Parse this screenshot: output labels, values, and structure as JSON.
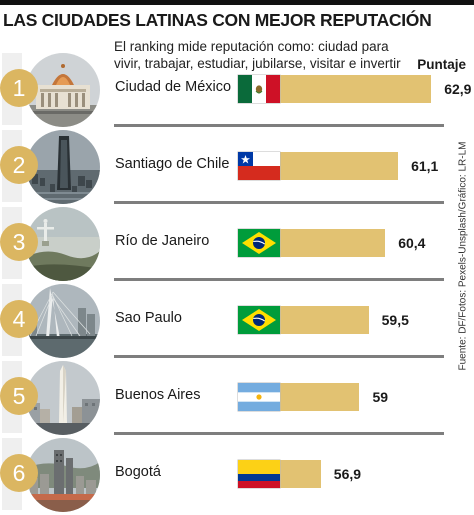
{
  "title": "LAS CIUDADES LATINAS CON MEJOR REPUTACIÓN",
  "subtitle": "El ranking mide reputación como: ciudad para vivir, trabajar, estudiar, jubilarse, visitar e invertir",
  "value_header": "Puntaje",
  "source": "Fuente: DF/Fotos: Pexels-Unsplash/Gráfico: LR-LM",
  "colors": {
    "bar": "#e2c272",
    "rank_badge": "#dbb661",
    "divider": "#7e7e7e"
  },
  "chart_data": {
    "type": "bar",
    "orientation": "horizontal",
    "title": "LAS CIUDADES LATINAS CON MEJOR REPUTACIÓN",
    "subtitle": "El ranking mide reputación como: ciudad para vivir, trabajar, estudiar, jubilarse, visitar e invertir",
    "value_label": "Puntaje",
    "categories": [
      "Ciudad de México",
      "Santiago de Chile",
      "Río de Janeiro",
      "Sao Paulo",
      "Buenos Aires",
      "Bogotá"
    ],
    "values": [
      62.9,
      61.1,
      60.4,
      59.5,
      59,
      56.9
    ],
    "value_labels": [
      "62,9",
      "61,1",
      "60,4",
      "59,5",
      "59",
      "56,9"
    ],
    "ranks": [
      "1",
      "2",
      "3",
      "4",
      "5",
      "6"
    ],
    "flags": [
      "mexico-flag",
      "chile-flag",
      "brazil-flag",
      "brazil-flag",
      "argentina-flag",
      "colombia-flag"
    ],
    "photos": [
      "palacio-bellas-artes-photo",
      "santiago-skyline-photo",
      "cristo-redentor-photo",
      "sao-paulo-bridge-photo",
      "obelisco-photo",
      "bogota-skyline-photo"
    ],
    "grid": false,
    "legend": "none"
  }
}
